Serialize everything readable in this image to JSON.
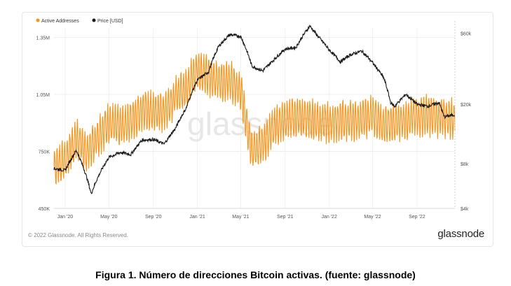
{
  "chart_data": {
    "type": "line",
    "legend": [
      {
        "name": "Active Addresses",
        "color": "#f7931a",
        "marker": "circle"
      },
      {
        "name": "Price [USD]",
        "color": "#1a1a1a",
        "marker": "circle"
      }
    ],
    "x_ticks": [
      "Jan '20",
      "May '20",
      "Sep '20",
      "Jan '21",
      "May '21",
      "Sep '21",
      "Jan '22",
      "May '22",
      "Sep '22"
    ],
    "x_range": [
      "2019-12-01",
      "2022-12-15"
    ],
    "y_left": {
      "ticks": [
        "450K",
        "750K",
        "1.05M",
        "1.35M"
      ],
      "range": [
        450000,
        1400000
      ]
    },
    "y_right": {
      "scale": "log",
      "ticks": [
        "$4k",
        "$8k",
        "$20k",
        "$60k"
      ],
      "range": [
        4000,
        65000
      ]
    },
    "grid": true,
    "legend_position": "top-left",
    "watermark": "glassnode",
    "series": [
      {
        "name": "Active Addresses",
        "axis": "left",
        "color": "#f7931a",
        "points": [
          [
            "2019-12-01",
            670000
          ],
          [
            "2020-01-01",
            700000
          ],
          [
            "2020-02-01",
            820000
          ],
          [
            "2020-03-01",
            740000
          ],
          [
            "2020-04-01",
            830000
          ],
          [
            "2020-05-01",
            900000
          ],
          [
            "2020-06-01",
            880000
          ],
          [
            "2020-07-01",
            910000
          ],
          [
            "2020-08-01",
            970000
          ],
          [
            "2020-09-01",
            960000
          ],
          [
            "2020-10-01",
            960000
          ],
          [
            "2020-11-01",
            1040000
          ],
          [
            "2020-12-01",
            1090000
          ],
          [
            "2021-01-01",
            1180000
          ],
          [
            "2021-02-01",
            1140000
          ],
          [
            "2021-03-01",
            1130000
          ],
          [
            "2021-04-01",
            1120000
          ],
          [
            "2021-05-01",
            1060000
          ],
          [
            "2021-06-01",
            760000
          ],
          [
            "2021-07-01",
            780000
          ],
          [
            "2021-08-01",
            880000
          ],
          [
            "2021-09-01",
            920000
          ],
          [
            "2021-10-01",
            930000
          ],
          [
            "2021-11-01",
            920000
          ],
          [
            "2021-12-01",
            910000
          ],
          [
            "2022-01-01",
            900000
          ],
          [
            "2022-02-01",
            910000
          ],
          [
            "2022-03-01",
            910000
          ],
          [
            "2022-04-01",
            920000
          ],
          [
            "2022-05-01",
            940000
          ],
          [
            "2022-06-01",
            890000
          ],
          [
            "2022-07-01",
            900000
          ],
          [
            "2022-08-01",
            920000
          ],
          [
            "2022-09-01",
            930000
          ],
          [
            "2022-10-01",
            940000
          ],
          [
            "2022-11-01",
            930000
          ],
          [
            "2022-12-15",
            920000
          ]
        ]
      },
      {
        "name": "Price [USD]",
        "axis": "right",
        "color": "#1a1a1a",
        "points": [
          [
            "2019-12-01",
            7400
          ],
          [
            "2020-01-01",
            7200
          ],
          [
            "2020-02-01",
            9800
          ],
          [
            "2020-03-13",
            5000
          ],
          [
            "2020-04-01",
            6500
          ],
          [
            "2020-05-01",
            8800
          ],
          [
            "2020-06-01",
            9500
          ],
          [
            "2020-07-01",
            9200
          ],
          [
            "2020-08-01",
            11500
          ],
          [
            "2020-09-01",
            11600
          ],
          [
            "2020-10-01",
            10800
          ],
          [
            "2020-11-01",
            13700
          ],
          [
            "2020-12-01",
            18800
          ],
          [
            "2021-01-01",
            29000
          ],
          [
            "2021-02-01",
            33000
          ],
          [
            "2021-03-01",
            49000
          ],
          [
            "2021-04-01",
            58700
          ],
          [
            "2021-05-01",
            57000
          ],
          [
            "2021-06-01",
            36000
          ],
          [
            "2021-07-01",
            33500
          ],
          [
            "2021-08-01",
            39800
          ],
          [
            "2021-09-01",
            47000
          ],
          [
            "2021-10-01",
            48000
          ],
          [
            "2021-11-08",
            67000
          ],
          [
            "2021-12-01",
            57000
          ],
          [
            "2022-01-01",
            46300
          ],
          [
            "2022-02-01",
            38500
          ],
          [
            "2022-03-01",
            43000
          ],
          [
            "2022-04-01",
            45500
          ],
          [
            "2022-05-01",
            38000
          ],
          [
            "2022-06-01",
            30000
          ],
          [
            "2022-06-20",
            20500
          ],
          [
            "2022-07-01",
            19300
          ],
          [
            "2022-08-01",
            23300
          ],
          [
            "2022-09-01",
            20000
          ],
          [
            "2022-10-01",
            19400
          ],
          [
            "2022-11-01",
            20500
          ],
          [
            "2022-11-15",
            16500
          ],
          [
            "2022-12-15",
            17000
          ]
        ]
      }
    ]
  },
  "footer": {
    "copyright": "© 2022 Glassnode. All Rights Reserved.",
    "logo": "glassnode"
  },
  "caption": "Figura 1. Número de direcciones Bitcoin activas. (fuente: glassnode)"
}
